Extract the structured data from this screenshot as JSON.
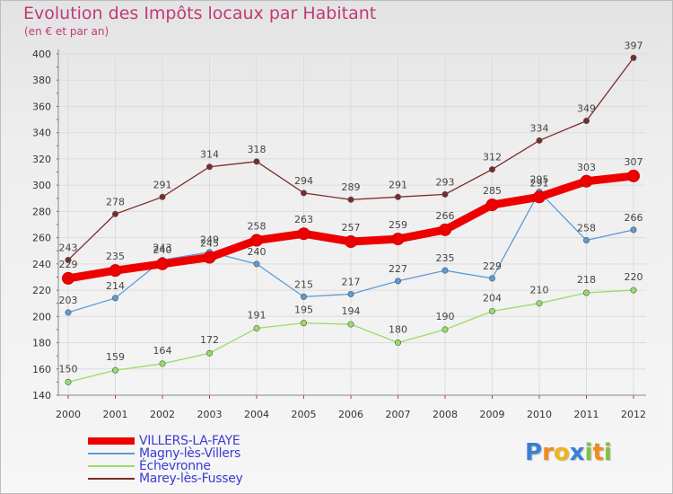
{
  "header": {
    "title": "Evolution des Impôts locaux par Habitant",
    "subtitle": "(en € et par an)"
  },
  "logo": {
    "text": "Proxiti",
    "letters": [
      "P",
      "r",
      "o",
      "x",
      "i",
      "t",
      "i"
    ],
    "colors": [
      "#3a7fd4",
      "#f08a1c",
      "#f0b41c",
      "#3a7fd4",
      "#7cc242",
      "#f08a1c",
      "#7cc242"
    ]
  },
  "chart_data": {
    "type": "line",
    "title": "Evolution des Impôts locaux par Habitant",
    "subtitle": "(en € et par an)",
    "xlabel": "",
    "ylabel": "",
    "x": [
      "2000",
      "2001",
      "2002",
      "2003",
      "2004",
      "2005",
      "2006",
      "2007",
      "2008",
      "2009",
      "2010",
      "2011",
      "2012"
    ],
    "ylim": [
      140,
      400
    ],
    "yticks": [
      140,
      160,
      180,
      200,
      220,
      240,
      260,
      280,
      300,
      320,
      340,
      360,
      380,
      400
    ],
    "grid": true,
    "legend_position": "bottom-left",
    "series": [
      {
        "name": "VILLERS-LA-FAYE",
        "color": "#ff0000",
        "emphasis": true,
        "values": [
          229,
          235,
          240,
          245,
          258,
          263,
          257,
          259,
          266,
          285,
          291,
          303,
          307
        ]
      },
      {
        "name": "Magny-lès-Villers",
        "color": "#5b9bd5",
        "values": [
          203,
          214,
          243,
          249,
          240,
          215,
          217,
          227,
          235,
          229,
          295,
          258,
          266
        ]
      },
      {
        "name": "Échevronne",
        "color": "#99dd66",
        "values": [
          150,
          159,
          164,
          172,
          191,
          195,
          194,
          180,
          190,
          204,
          210,
          218,
          220
        ]
      },
      {
        "name": "Marey-lès-Fussey",
        "color": "#7b2b2b",
        "values": [
          243,
          278,
          291,
          314,
          318,
          294,
          289,
          291,
          293,
          312,
          334,
          349,
          397
        ]
      }
    ]
  }
}
